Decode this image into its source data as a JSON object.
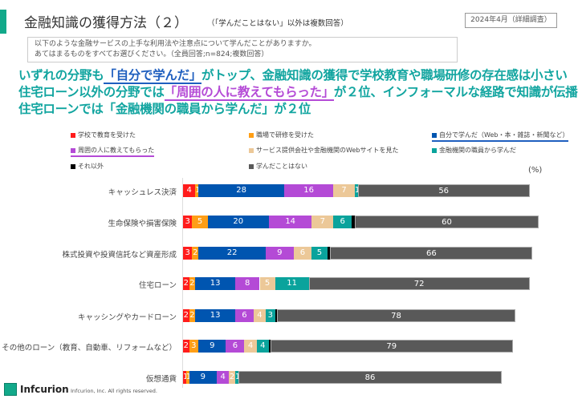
{
  "header": {
    "title": "金融知識の獲得方法（２）",
    "subtitle": "（「学んだことはない」以外は複数回答）",
    "date": "2024年4月（詳細調査）"
  },
  "question": {
    "line1": "以下のような金融サービスの上手な利用法や注意点について学んだことがありますか。",
    "line2": "あてはまるものをすべてお選びください。（全員回答;n=824;複数回答）"
  },
  "headline": {
    "l1a": "いずれの分野も",
    "l1b": "「自分で学んだ」",
    "l1c": "がトップ、金融知識の獲得で学校教育や職場研修の存在感は小さい",
    "l2a": "住宅ローン以外の分野では",
    "l2b": "「周囲の人に教えてもらった」",
    "l2c": "が２位、インフォーマルな経路で知識が伝播",
    "l3": "住宅ローンでは「金融機関の職員から学んだ」が２位"
  },
  "footer": {
    "logo": "Infcurion",
    "copyright": "Infcurion, Inc.  All rights reserved."
  },
  "chart_data": {
    "type": "bar",
    "orientation": "horizontal",
    "stacked": true,
    "unit_label": "(%)",
    "categories": [
      "キャッシュレス決済",
      "生命保険や損害保険",
      "株式投資や投資信託など資産形成",
      "住宅ローン",
      "キャッシングやカードローン",
      "その他のローン（教育、自動車、リフォームなど）",
      "仮想通貨"
    ],
    "series": [
      {
        "name": "学校で教育を受けた",
        "color": "#ff1c1c",
        "values": [
          4,
          3,
          3,
          2,
          2,
          2,
          1
        ]
      },
      {
        "name": "職場で研修を受けた",
        "color": "#ff9e16",
        "values": [
          1,
          5,
          2,
          2,
          2,
          3,
          1
        ]
      },
      {
        "name": "自分で学んだ（Web・本・雑誌・新聞など）",
        "color": "#0055b0",
        "values": [
          28,
          20,
          22,
          13,
          13,
          9,
          9
        ]
      },
      {
        "name": "周囲の人に教えてもらった",
        "color": "#b44ad6",
        "values": [
          16,
          14,
          9,
          8,
          6,
          6,
          4
        ]
      },
      {
        "name": "サービス提供会社や金融機関のWebサイトを見た",
        "color": "#ecc898",
        "values": [
          7,
          7,
          6,
          5,
          4,
          4,
          2
        ]
      },
      {
        "name": "金融機関の職員から学んだ",
        "color": "#0aa39c",
        "values": [
          1,
          6,
          5,
          11,
          3,
          4,
          1
        ]
      },
      {
        "name": "それ以外",
        "color": "#000000",
        "values": [
          0,
          1,
          1,
          0,
          0.5,
          0.5,
          0
        ]
      },
      {
        "name": "学んだことはない",
        "color": "#595959",
        "values": [
          56,
          60,
          66,
          72,
          78,
          79,
          86
        ]
      }
    ],
    "legend_position": "top"
  }
}
